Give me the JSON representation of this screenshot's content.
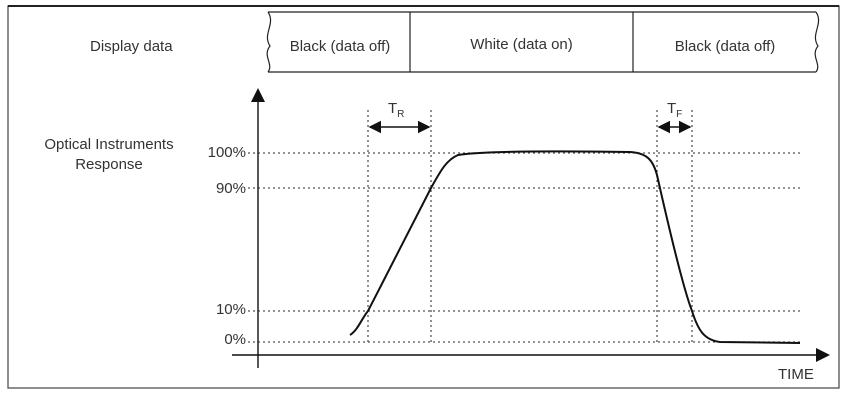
{
  "display_row": {
    "label": "Display data",
    "segments": [
      {
        "text": "Black (data off)"
      },
      {
        "text": "White (data on)"
      },
      {
        "text": "Black (data off)"
      }
    ]
  },
  "y_axis": {
    "title_line1": "Optical Instruments",
    "title_line2": "Response",
    "ticks": [
      "100%",
      "90%",
      "10%",
      "0%"
    ]
  },
  "x_axis": {
    "label": "TIME"
  },
  "timing": {
    "rise": {
      "main": "T",
      "sub": "R"
    },
    "fall": {
      "main": "T",
      "sub": "F"
    }
  },
  "colors": {
    "line": "#111111",
    "dotted": "#555555",
    "text": "#333333"
  }
}
